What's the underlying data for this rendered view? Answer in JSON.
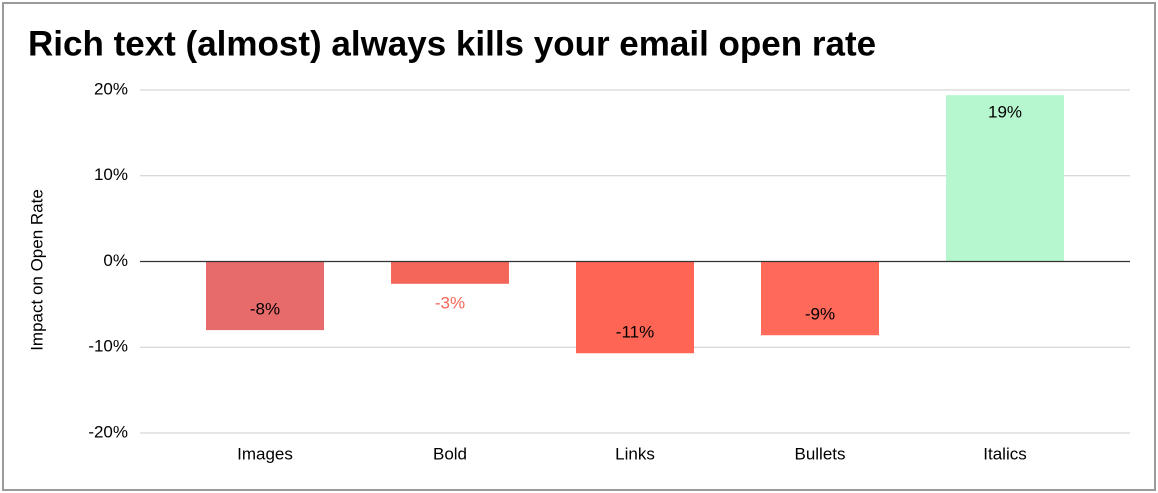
{
  "chart_data": {
    "type": "bar",
    "title": "Rich text (almost) always kills your email open rate",
    "y_label": "Impact on Open Rate",
    "categories": [
      "Images",
      "Bold",
      "Links",
      "Bullets",
      "Italics"
    ],
    "values": [
      -8,
      -2.6,
      -10.7,
      -8.6,
      19.4
    ],
    "value_labels": [
      "-8%",
      "-3%",
      "-11%",
      "-9%",
      "19%"
    ],
    "colors": [
      "#e86b6b",
      "#f4665a",
      "#ff6555",
      "#ff6a5a",
      "#b7f7cf"
    ],
    "ylim": [
      -20,
      20
    ],
    "yticks": [
      {
        "value": -20,
        "label": "-20%"
      },
      {
        "value": -10,
        "label": "-10%"
      },
      {
        "value": 0,
        "label": "0%"
      },
      {
        "value": 10,
        "label": "10%"
      },
      {
        "value": 20,
        "label": "20%"
      }
    ],
    "grid": true
  }
}
